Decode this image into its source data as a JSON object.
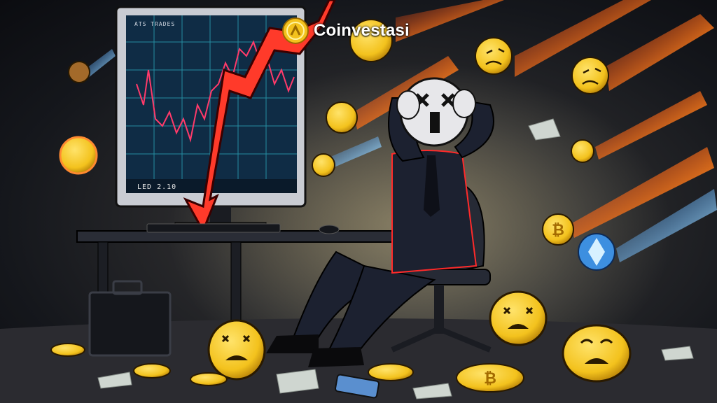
{
  "brand": {
    "name": "Coinvestasi"
  },
  "monitor": {
    "header_text": "ATS TRADES",
    "caption_text": "LED 2.10"
  },
  "icons": {
    "brand_logo": "coin-logo-icon",
    "crash_arrow": "down-arrow-icon",
    "bitcoin": "bitcoin-coin-icon",
    "ethereum": "ethereum-coin-icon",
    "sad_coin": "crying-emoji-coin-icon"
  },
  "colors": {
    "accent_red": "#ff3a2a",
    "chart_grid": "#2fb7c9",
    "screen_bg": "#0f2c45",
    "coin_gold": "#f3c21d",
    "flame": "#ff7a1a",
    "suit": "#1c2130"
  }
}
